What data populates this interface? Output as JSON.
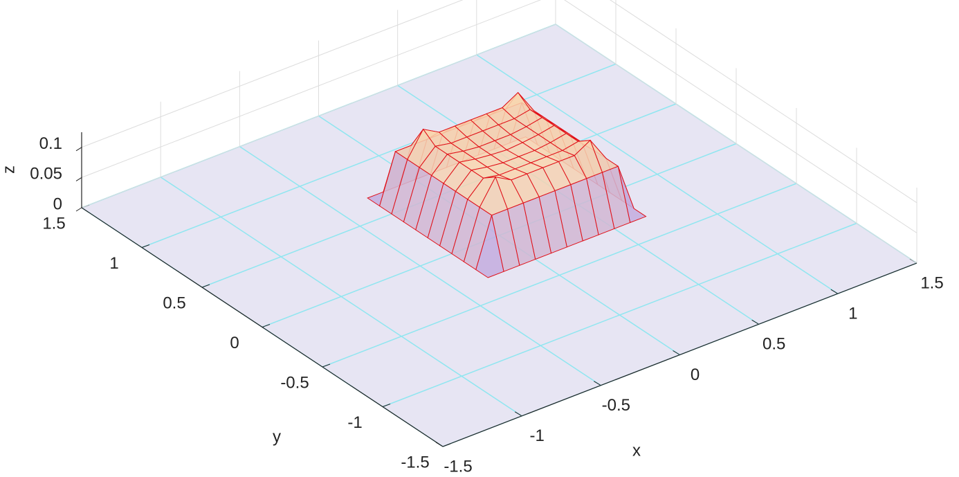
{
  "chart_data": {
    "type": "surface",
    "xlabel": "x",
    "ylabel": "y",
    "zlabel": "z",
    "xlim": [
      -1.5,
      1.5
    ],
    "ylim": [
      -1.5,
      1.5
    ],
    "zlim": [
      0,
      0.125
    ],
    "xticks": [
      -1.5,
      -1,
      -0.5,
      0,
      0.5,
      1,
      1.5
    ],
    "yticks": [
      -1.5,
      -1,
      -0.5,
      0,
      0.5,
      1,
      1.5
    ],
    "zticks": [
      0,
      0.05,
      0.1
    ],
    "grid": true,
    "floor_color": "#e7e5f3",
    "floor_grid_color": "#8fe6f0",
    "wall_grid_color": "#dcdcdc",
    "edge_color": "#e01018",
    "face_colors": [
      "#b6a3ea",
      "#f9d6ae"
    ],
    "x": [
      -0.3,
      -0.2,
      -0.1,
      0,
      0.1,
      0.2,
      0.3,
      0.4,
      0.5,
      0.6,
      0.7
    ],
    "y": [
      -0.3,
      -0.2,
      -0.1,
      0,
      0.1,
      0.2,
      0.3,
      0.4,
      0.5,
      0.6,
      0.7
    ],
    "z": [
      [
        0,
        0,
        0,
        0,
        0,
        0,
        0,
        0,
        0,
        0,
        0
      ],
      [
        0,
        0.08,
        0.08,
        0.08,
        0.08,
        0.08,
        0.08,
        0.08,
        0.08,
        0.08,
        0
      ],
      [
        0,
        0.08,
        0.12,
        0.105,
        0.105,
        0.105,
        0.105,
        0.105,
        0.12,
        0.08,
        0
      ],
      [
        0,
        0.08,
        0.105,
        0.1,
        0.1,
        0.1,
        0.1,
        0.1,
        0.105,
        0.08,
        0
      ],
      [
        0,
        0.08,
        0.105,
        0.1,
        0.097,
        0.097,
        0.097,
        0.1,
        0.105,
        0.08,
        0
      ],
      [
        0,
        0.08,
        0.105,
        0.1,
        0.097,
        0.095,
        0.097,
        0.1,
        0.105,
        0.08,
        0
      ],
      [
        0,
        0.08,
        0.105,
        0.1,
        0.097,
        0.097,
        0.097,
        0.1,
        0.105,
        0.08,
        0
      ],
      [
        0,
        0.08,
        0.105,
        0.1,
        0.1,
        0.1,
        0.1,
        0.1,
        0.105,
        0.08,
        0
      ],
      [
        0,
        0.08,
        0.12,
        0.105,
        0.105,
        0.105,
        0.105,
        0.105,
        0.12,
        0.08,
        0
      ],
      [
        0,
        0.08,
        0.08,
        0.08,
        0.08,
        0.08,
        0.08,
        0.08,
        0.08,
        0.08,
        0
      ],
      [
        0,
        0,
        0,
        0,
        0,
        0,
        0,
        0,
        0,
        0,
        0
      ]
    ]
  }
}
